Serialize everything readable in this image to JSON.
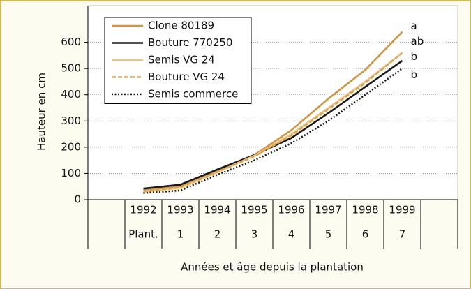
{
  "chart_data": {
    "type": "line",
    "categories": [
      null,
      "1992",
      "1993",
      "1994",
      "1995",
      "1996",
      "1997",
      "1998",
      "1999",
      null
    ],
    "x_sublabels": [
      null,
      "Plant.",
      "1",
      "2",
      "3",
      "4",
      "5",
      "6",
      "7",
      null
    ],
    "xlabel": "Années et âge depuis la plantation",
    "ylabel": "Hauteur en cm",
    "ylim": [
      0,
      740
    ],
    "yticks": [
      0,
      100,
      200,
      300,
      400,
      500,
      600
    ],
    "grid": true,
    "series": [
      {
        "name": "Clone 80189",
        "color": "#d3943d",
        "style": "solid",
        "values": [
          null,
          38,
          50,
          110,
          170,
          265,
          385,
          495,
          640,
          null
        ]
      },
      {
        "name": "Bouture 770250",
        "color": "#1a1a1a",
        "style": "solid",
        "values": [
          null,
          42,
          57,
          115,
          170,
          235,
          330,
          430,
          530,
          null
        ]
      },
      {
        "name": "Semis VG 24",
        "color": "#efc27c",
        "style": "solid",
        "values": [
          null,
          30,
          45,
          105,
          168,
          250,
          350,
          450,
          560,
          null
        ]
      },
      {
        "name": "Bouture VG 24",
        "color": "#e0a24f",
        "style": "dashed",
        "values": [
          null,
          32,
          48,
          105,
          165,
          245,
          345,
          445,
          560,
          null
        ]
      },
      {
        "name": "Semis commerce",
        "color": "#1a1a1a",
        "style": "dotted",
        "values": [
          null,
          25,
          35,
          95,
          150,
          215,
          300,
          400,
          500,
          null
        ]
      }
    ],
    "annotations": [
      "a",
      "ab",
      "b",
      "b"
    ],
    "legend": "upper left"
  }
}
